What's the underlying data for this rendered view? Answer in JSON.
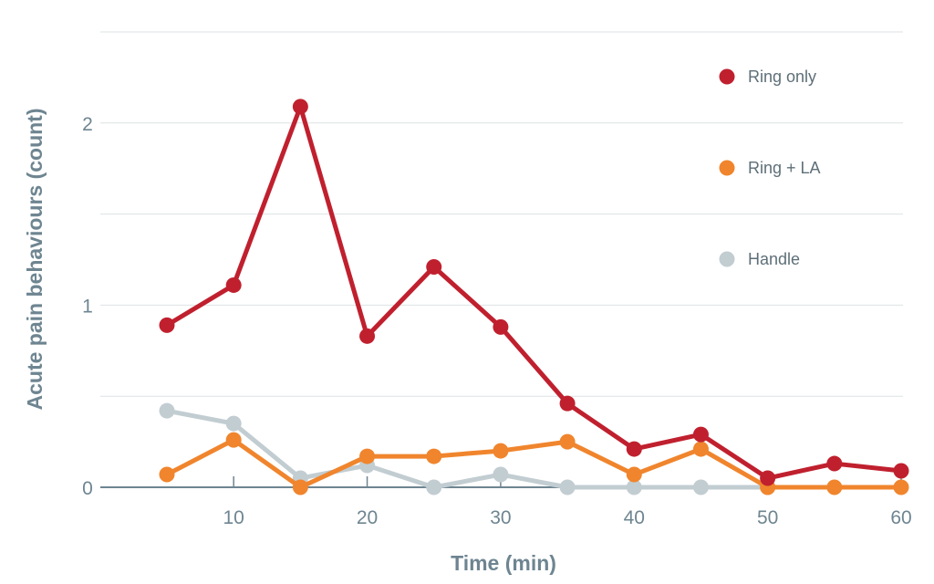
{
  "chart_data": {
    "type": "line",
    "xlabel": "Time (min)",
    "ylabel": "Acute pain behaviours (count)",
    "xlim": [
      0,
      60
    ],
    "ylim": [
      0,
      2.5
    ],
    "x_ticks": [
      10,
      20,
      30,
      40,
      50,
      60
    ],
    "y_ticks": [
      0,
      1,
      2
    ],
    "gridlines_y": [
      0.5,
      1,
      1.5,
      2,
      2.5
    ],
    "grid": true,
    "legend_position": "top-right",
    "x": [
      5,
      10,
      15,
      20,
      25,
      30,
      35,
      40,
      45,
      50,
      55,
      60
    ],
    "series": [
      {
        "name": "Handle",
        "color": "#c2cdd2",
        "values": [
          0.42,
          0.35,
          0.05,
          0.12,
          0.0,
          0.07,
          0.0,
          0.0,
          0.0,
          0.0,
          null,
          null
        ]
      },
      {
        "name": "Ring + LA",
        "color": "#f0852d",
        "values": [
          0.07,
          0.26,
          0.0,
          0.17,
          0.17,
          0.2,
          0.25,
          0.07,
          0.21,
          0.0,
          0.0,
          0.0
        ]
      },
      {
        "name": "Ring only",
        "color": "#c0202e",
        "values": [
          0.89,
          1.11,
          2.09,
          0.83,
          1.21,
          0.88,
          0.46,
          0.21,
          0.29,
          0.05,
          0.13,
          0.09
        ]
      }
    ],
    "legend_order": [
      "Ring only",
      "Ring + LA",
      "Handle"
    ]
  }
}
